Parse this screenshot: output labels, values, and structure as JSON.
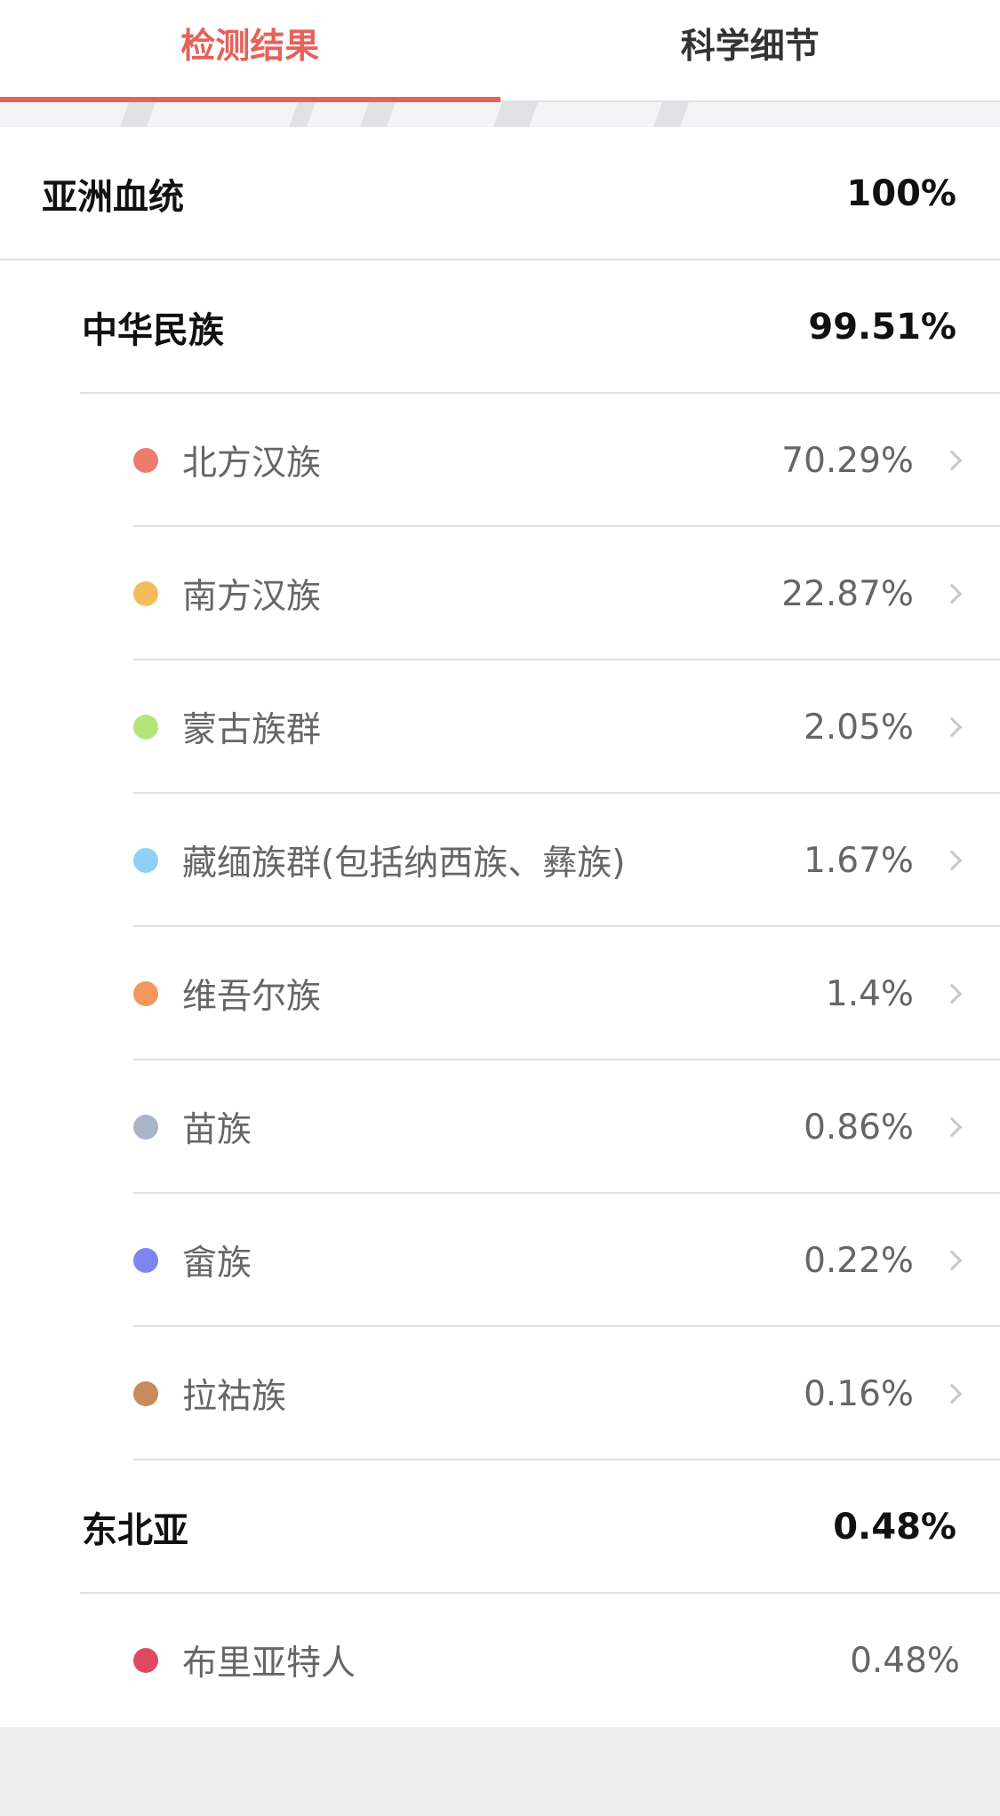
{
  "tabs": [
    {
      "label": "检测结果",
      "active": true
    },
    {
      "label": "科学细节",
      "active": false
    }
  ],
  "accent_color": "#e5625a",
  "region": {
    "label": "亚洲血统",
    "percent": "100%"
  },
  "groups": [
    {
      "label": "中华民族",
      "percent": "99.51%",
      "items": [
        {
          "label": "北方汉族",
          "percent": "70.29%",
          "color": "#ee7a6e"
        },
        {
          "label": "南方汉族",
          "percent": "22.87%",
          "color": "#f5bd5a"
        },
        {
          "label": "蒙古族群",
          "percent": "2.05%",
          "color": "#b5e47a"
        },
        {
          "label": "藏缅族群(包括纳西族、彝族)",
          "percent": "1.67%",
          "color": "#8dd1f7"
        },
        {
          "label": "维吾尔族",
          "percent": "1.4%",
          "color": "#f3975f"
        },
        {
          "label": "苗族",
          "percent": "0.86%",
          "color": "#aab4c8"
        },
        {
          "label": "畲族",
          "percent": "0.22%",
          "color": "#7d86f0"
        },
        {
          "label": "拉祜族",
          "percent": "0.16%",
          "color": "#c98a5c"
        }
      ]
    },
    {
      "label": "东北亚",
      "percent": "0.48%",
      "items": [
        {
          "label": "布里亚特人",
          "percent": "0.48%",
          "color": "#e04a60"
        }
      ]
    }
  ]
}
